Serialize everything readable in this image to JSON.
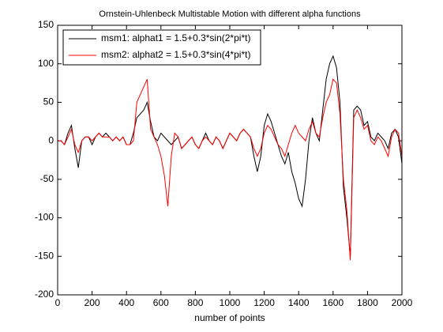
{
  "chart_data": {
    "type": "line",
    "title": "Ornstein-Uhlenbeck Multistable Motion with different alpha functions",
    "xlabel": "number of points",
    "x": [
      0,
      20,
      40,
      60,
      80,
      100,
      120,
      140,
      160,
      180,
      200,
      220,
      240,
      260,
      280,
      300,
      320,
      340,
      360,
      380,
      400,
      420,
      440,
      460,
      480,
      500,
      520,
      540,
      560,
      580,
      600,
      620,
      640,
      660,
      680,
      700,
      720,
      740,
      760,
      780,
      800,
      820,
      840,
      860,
      880,
      900,
      920,
      940,
      960,
      980,
      1000,
      1020,
      1040,
      1060,
      1080,
      1100,
      1120,
      1140,
      1160,
      1180,
      1200,
      1220,
      1240,
      1260,
      1280,
      1300,
      1320,
      1340,
      1360,
      1380,
      1400,
      1420,
      1440,
      1460,
      1480,
      1500,
      1520,
      1540,
      1560,
      1580,
      1600,
      1620,
      1640,
      1660,
      1680,
      1700,
      1720,
      1740,
      1760,
      1780,
      1800,
      1820,
      1840,
      1860,
      1880,
      1900,
      1920,
      1940,
      1960,
      1980,
      2000
    ],
    "series": [
      {
        "name": "msm1: alphat1 = 1.5+0.3*sin(2*pi*t)",
        "color": "#000000",
        "values": [
          0,
          0,
          -5,
          10,
          20,
          -10,
          -35,
          0,
          5,
          5,
          -5,
          5,
          10,
          5,
          10,
          5,
          0,
          5,
          0,
          5,
          -5,
          -5,
          10,
          30,
          35,
          40,
          50,
          25,
          5,
          0,
          10,
          5,
          0,
          -5,
          0,
          5,
          -10,
          -5,
          0,
          5,
          -5,
          -10,
          0,
          10,
          0,
          -5,
          5,
          0,
          -10,
          0,
          10,
          5,
          0,
          10,
          15,
          10,
          5,
          -20,
          -40,
          -20,
          20,
          35,
          25,
          10,
          -5,
          -20,
          -30,
          -15,
          -40,
          -55,
          -75,
          -85,
          -50,
          0,
          30,
          10,
          0,
          40,
          80,
          100,
          110,
          95,
          50,
          -60,
          -100,
          -150,
          40,
          45,
          40,
          20,
          25,
          5,
          0,
          10,
          5,
          0,
          -10,
          10,
          15,
          5,
          -30
        ]
      },
      {
        "name": "msm2: alphat2 = 1.5+0.3*sin(4*pi*t)",
        "color": "#ff0000",
        "values": [
          0,
          0,
          -5,
          5,
          15,
          -5,
          -15,
          0,
          5,
          5,
          0,
          5,
          10,
          5,
          5,
          5,
          0,
          5,
          0,
          5,
          -5,
          -5,
          0,
          50,
          60,
          70,
          80,
          15,
          5,
          -5,
          -20,
          -45,
          -85,
          -20,
          10,
          5,
          -10,
          -5,
          0,
          5,
          -5,
          -10,
          0,
          5,
          0,
          -5,
          5,
          0,
          -10,
          0,
          10,
          5,
          0,
          10,
          15,
          10,
          5,
          -10,
          -20,
          -10,
          10,
          20,
          15,
          5,
          -5,
          -10,
          -20,
          -5,
          10,
          20,
          10,
          5,
          0,
          15,
          25,
          10,
          5,
          30,
          50,
          60,
          80,
          75,
          35,
          -50,
          -90,
          -155,
          30,
          40,
          30,
          15,
          20,
          0,
          -5,
          5,
          0,
          -10,
          -20,
          5,
          15,
          10,
          -20
        ]
      }
    ],
    "xlim": [
      0,
      2000
    ],
    "xticks": [
      0,
      200,
      400,
      600,
      800,
      1000,
      1200,
      1400,
      1600,
      1800,
      2000
    ],
    "ylim": [
      -200,
      150
    ],
    "yticks": [
      -200,
      -150,
      -100,
      -50,
      0,
      50,
      100,
      150
    ],
    "grid": false,
    "legend": "northwest"
  }
}
